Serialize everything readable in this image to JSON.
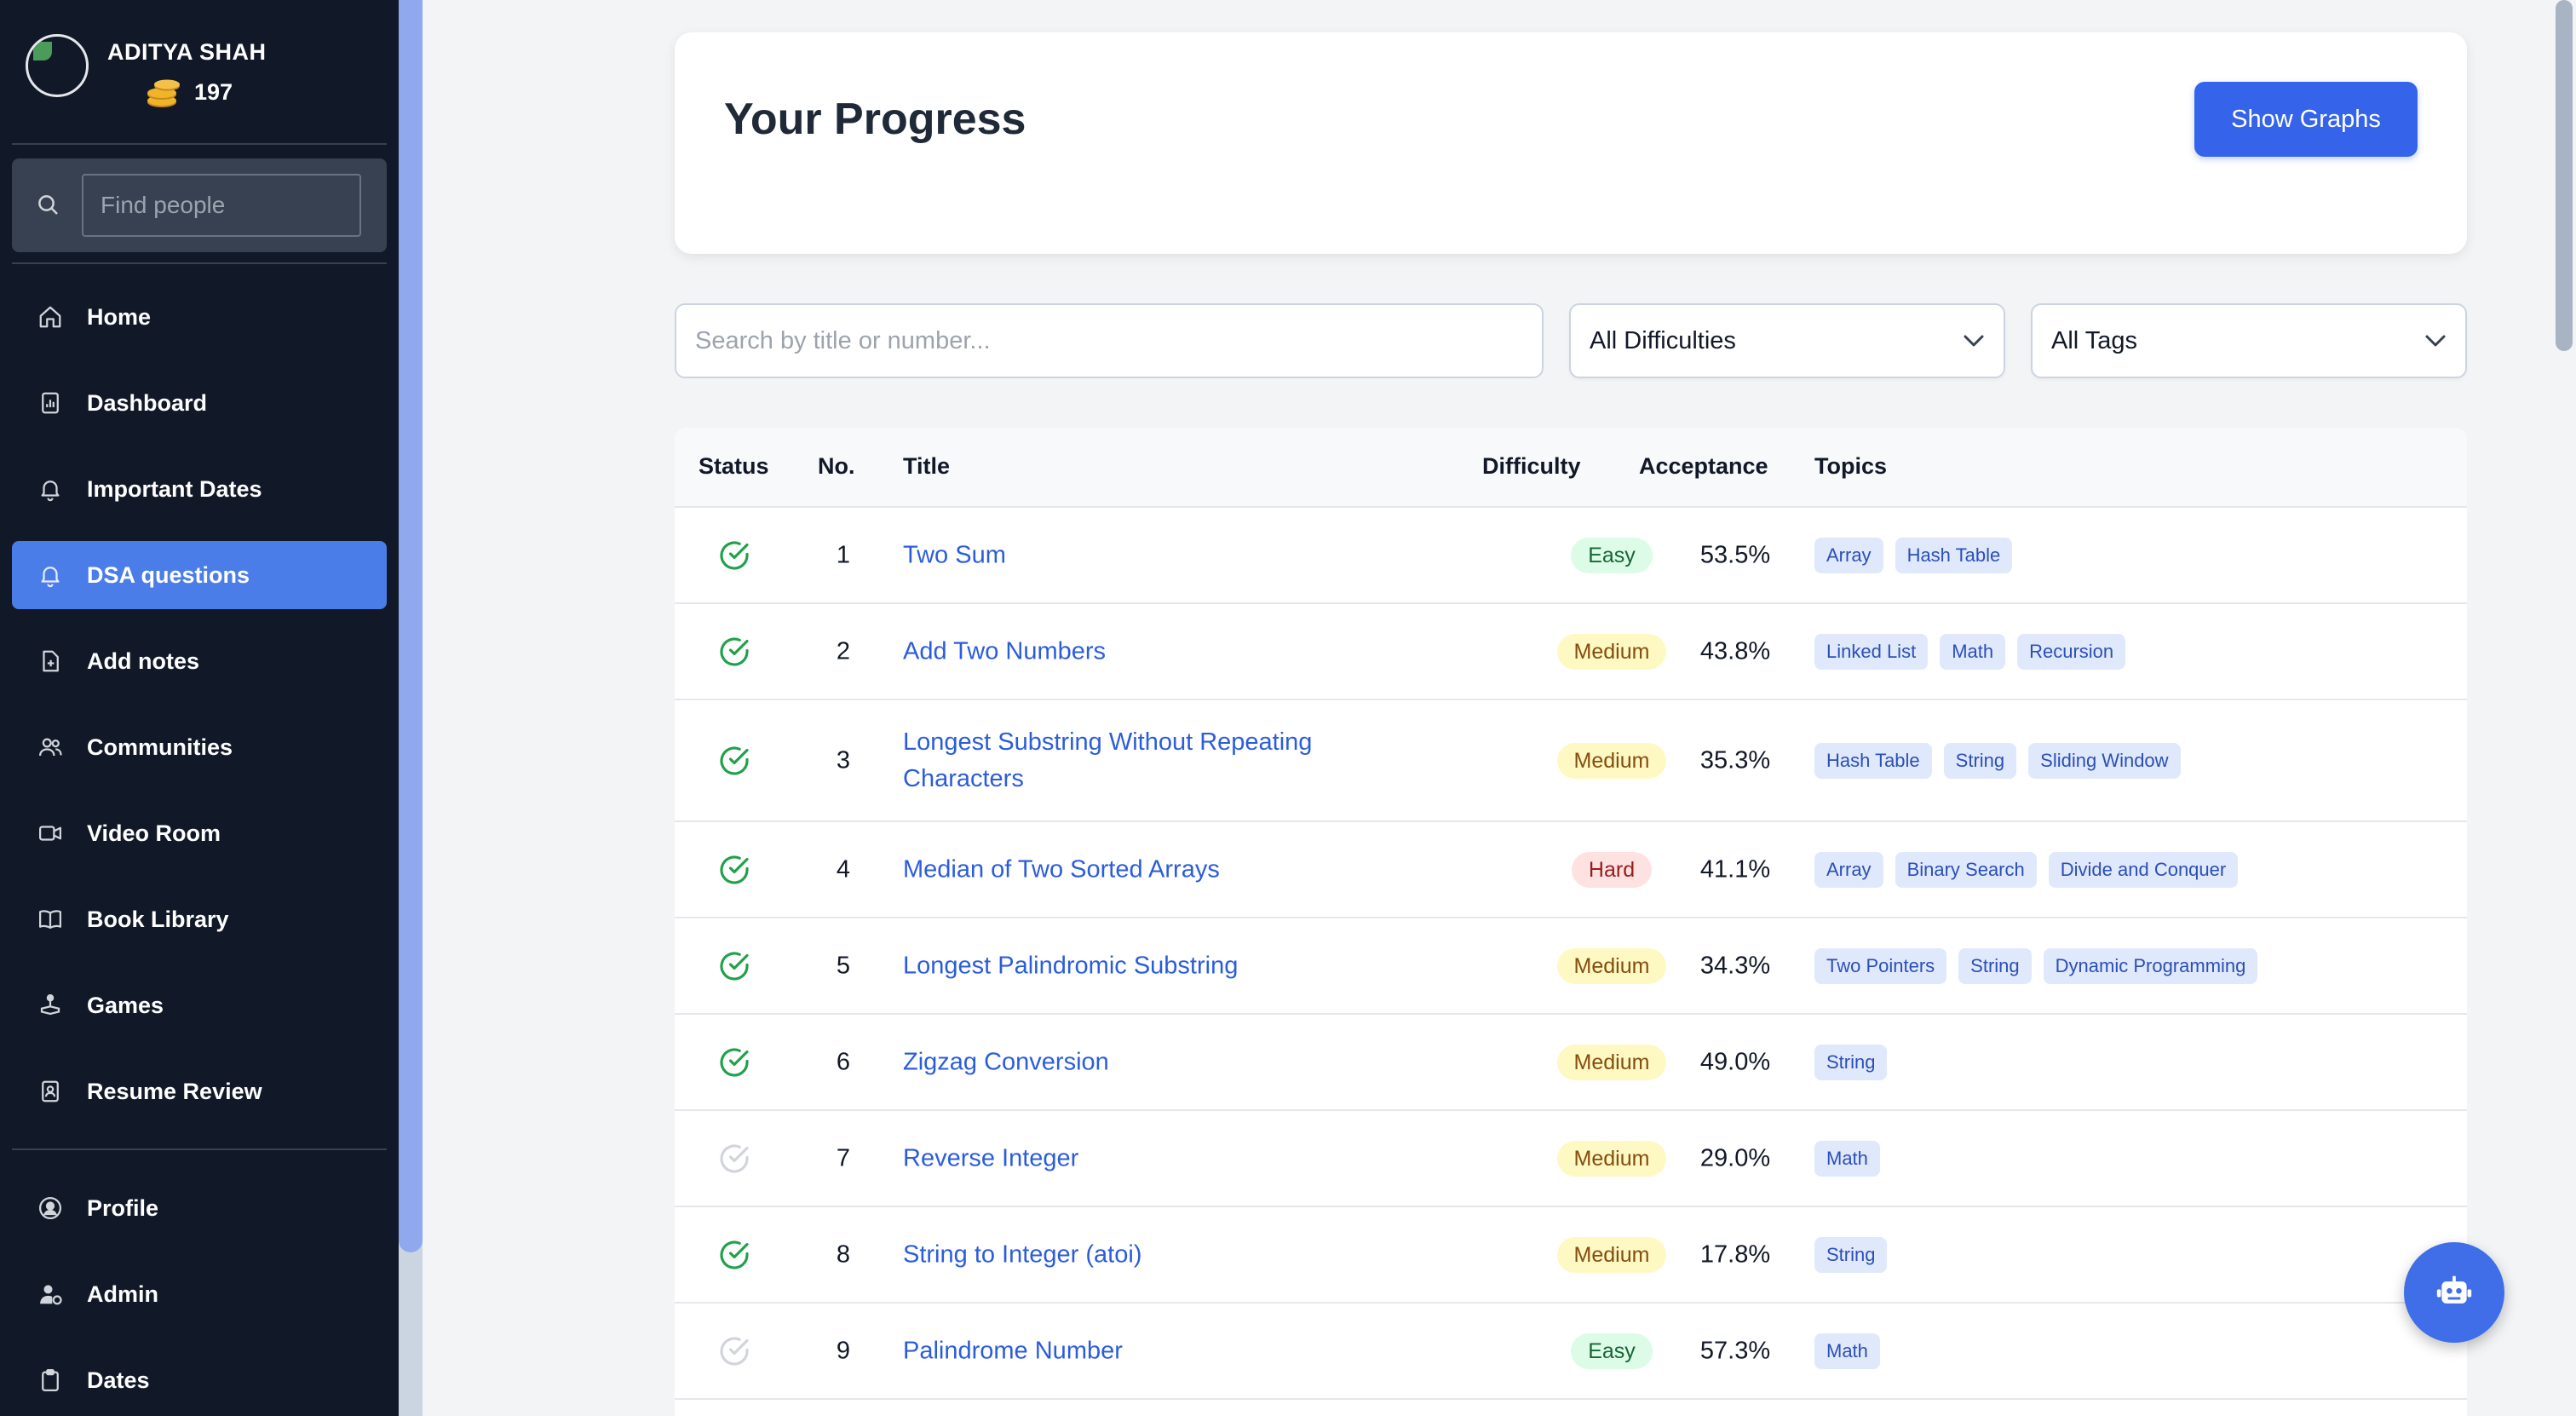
{
  "user": {
    "name": "ADITYA SHAH",
    "coins": "197"
  },
  "sidebar": {
    "search_placeholder": "Find people",
    "items": [
      {
        "label": "Home",
        "icon": "home-icon",
        "active": false
      },
      {
        "label": "Dashboard",
        "icon": "dashboard-icon",
        "active": false
      },
      {
        "label": "Important Dates",
        "icon": "bell-icon",
        "active": false
      },
      {
        "label": "DSA questions",
        "icon": "bell-icon",
        "active": true
      },
      {
        "label": "Add notes",
        "icon": "add-file-icon",
        "active": false
      },
      {
        "label": "Communities",
        "icon": "users-icon",
        "active": false
      },
      {
        "label": "Video Room",
        "icon": "video-icon",
        "active": false
      },
      {
        "label": "Book Library",
        "icon": "book-icon",
        "active": false
      },
      {
        "label": "Games",
        "icon": "joystick-icon",
        "active": false
      },
      {
        "label": "Resume Review",
        "icon": "resume-icon",
        "active": false
      }
    ],
    "bottom_items": [
      {
        "label": "Profile",
        "icon": "user-circle-icon"
      },
      {
        "label": "Admin",
        "icon": "user-gear-icon"
      },
      {
        "label": "Dates",
        "icon": "clipboard-icon"
      }
    ]
  },
  "progress": {
    "title": "Your Progress",
    "button_label": "Show Graphs"
  },
  "filters": {
    "search_placeholder": "Search by title or number...",
    "difficulty": "All Difficulties",
    "tags": "All Tags"
  },
  "table": {
    "headers": [
      "Status",
      "No.",
      "Title",
      "Difficulty",
      "Acceptance",
      "Topics"
    ],
    "rows": [
      {
        "solved": true,
        "no": "1",
        "title": "Two Sum",
        "difficulty": "Easy",
        "acceptance": "53.5%",
        "topics": [
          "Array",
          "Hash Table"
        ]
      },
      {
        "solved": true,
        "no": "2",
        "title": "Add Two Numbers",
        "difficulty": "Medium",
        "acceptance": "43.8%",
        "topics": [
          "Linked List",
          "Math",
          "Recursion"
        ]
      },
      {
        "solved": true,
        "no": "3",
        "title": "Longest Substring Without Repeating Characters",
        "difficulty": "Medium",
        "acceptance": "35.3%",
        "topics": [
          "Hash Table",
          "String",
          "Sliding Window"
        ]
      },
      {
        "solved": true,
        "no": "4",
        "title": "Median of Two Sorted Arrays",
        "difficulty": "Hard",
        "acceptance": "41.1%",
        "topics": [
          "Array",
          "Binary Search",
          "Divide and Conquer"
        ]
      },
      {
        "solved": true,
        "no": "5",
        "title": "Longest Palindromic Substring",
        "difficulty": "Medium",
        "acceptance": "34.3%",
        "topics": [
          "Two Pointers",
          "String",
          "Dynamic Programming"
        ]
      },
      {
        "solved": true,
        "no": "6",
        "title": "Zigzag Conversion",
        "difficulty": "Medium",
        "acceptance": "49.0%",
        "topics": [
          "String"
        ]
      },
      {
        "solved": false,
        "no": "7",
        "title": "Reverse Integer",
        "difficulty": "Medium",
        "acceptance": "29.0%",
        "topics": [
          "Math"
        ]
      },
      {
        "solved": true,
        "no": "8",
        "title": "String to Integer (atoi)",
        "difficulty": "Medium",
        "acceptance": "17.8%",
        "topics": [
          "String"
        ]
      },
      {
        "solved": false,
        "no": "9",
        "title": "Palindrome Number",
        "difficulty": "Easy",
        "acceptance": "57.3%",
        "topics": [
          "Math"
        ]
      }
    ]
  },
  "colors": {
    "sidebar_bg": "#111827",
    "accent": "#3563e9",
    "active_nav": "#4b7de8",
    "solved_check": "#22a04b",
    "unsolved_check": "#d1d5db"
  },
  "fab": {
    "icon": "robot-icon"
  }
}
